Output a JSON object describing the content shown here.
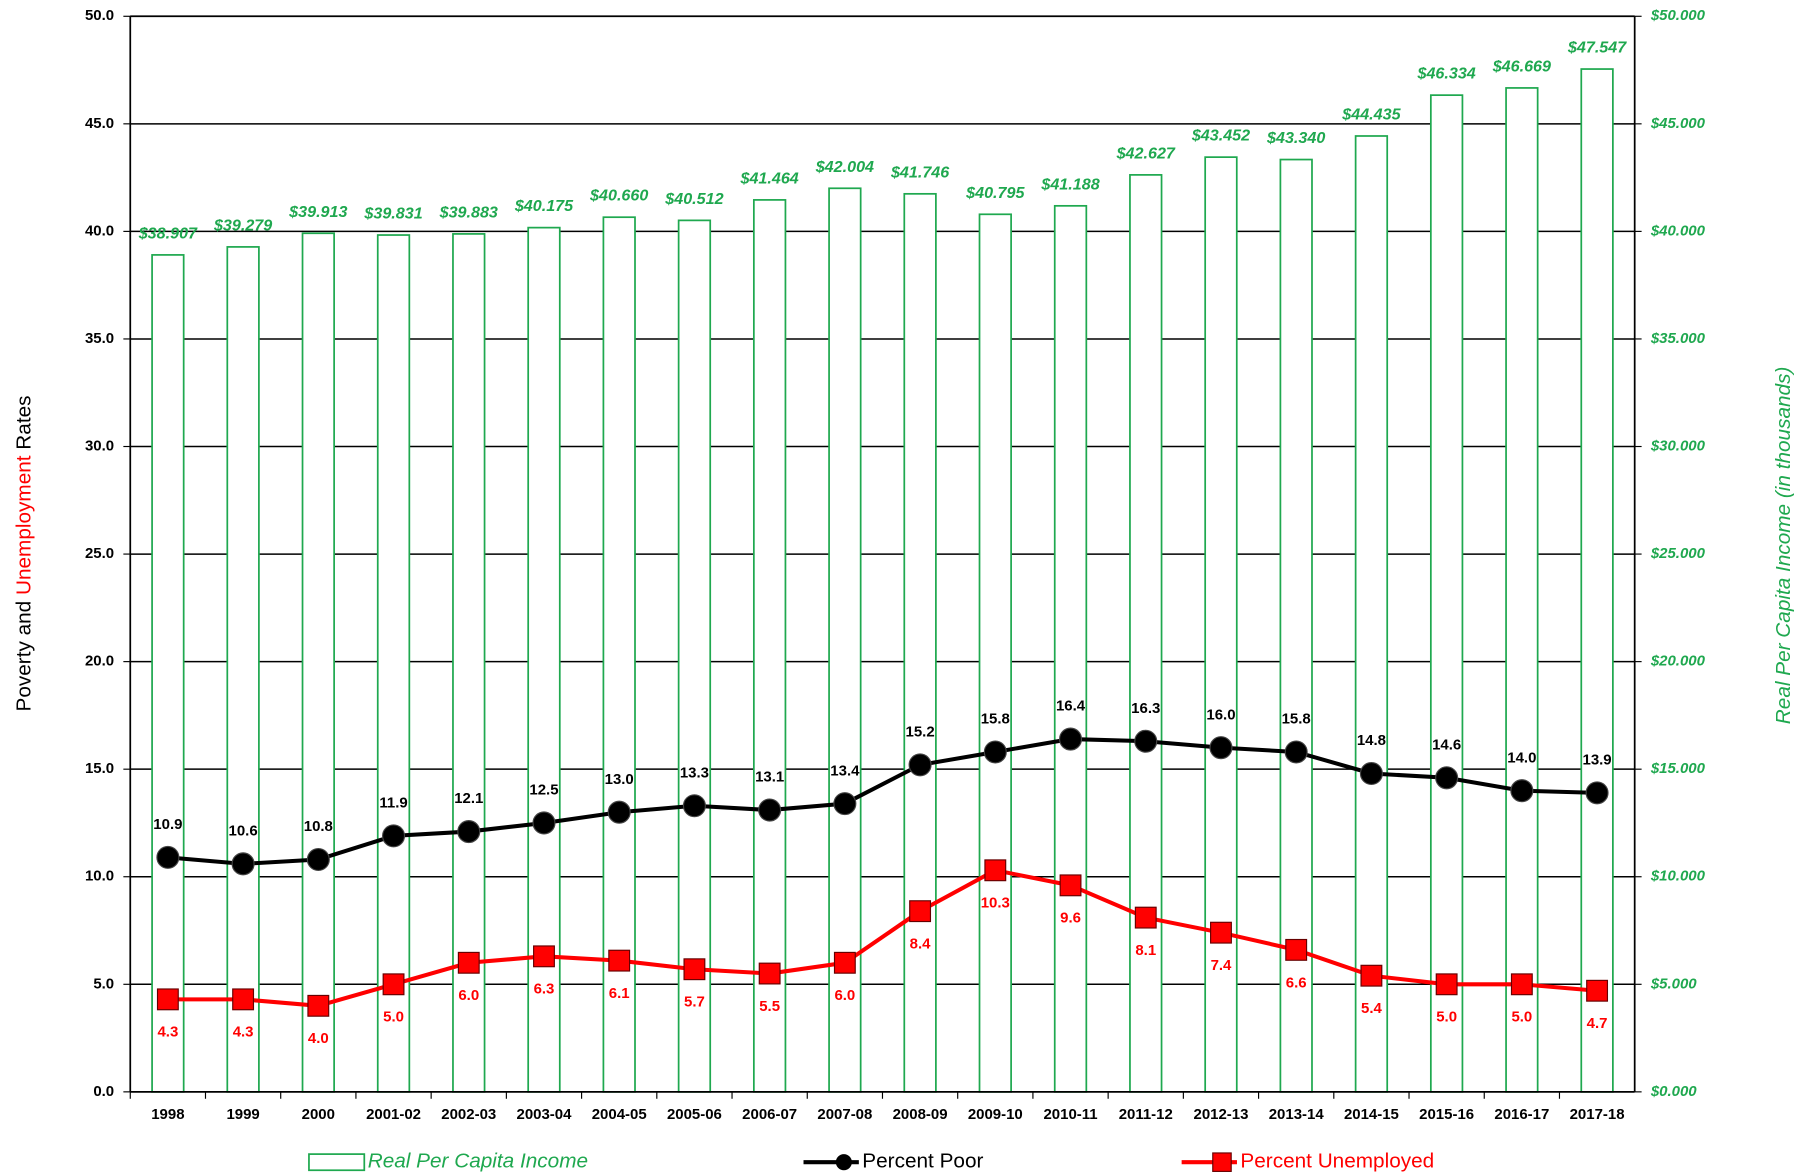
{
  "chart_data": {
    "type": "bar_line",
    "ylabel_parts": [
      "Poverty and",
      "Unemployment",
      "Rates"
    ],
    "y2label": "Real Per Capita Income (in thousands)",
    "categories": [
      "1998",
      "1999",
      "2000",
      "2001-02",
      "2002-03",
      "2003-04",
      "2004-05",
      "2005-06",
      "2006-07",
      "2007-08",
      "2008-09",
      "2009-10",
      "2010-11",
      "2011-12",
      "2012-13",
      "2013-14",
      "2014-15",
      "2015-16",
      "2016-17",
      "2017-18"
    ],
    "series": [
      {
        "name": "Real Per Capita Income",
        "type": "bar",
        "axis": "y2",
        "color": "#1fa84f",
        "values": [
          38.907,
          39.279,
          39.913,
          39.831,
          39.883,
          40.175,
          40.66,
          40.512,
          41.464,
          42.004,
          41.746,
          40.795,
          41.188,
          42.627,
          43.452,
          43.34,
          44.435,
          46.334,
          46.669,
          47.547
        ],
        "value_labels": [
          "$38.907",
          "$39.279",
          "$39.913",
          "$39.831",
          "$39.883",
          "$40.175",
          "$40.660",
          "$40.512",
          "$41.464",
          "$42.004",
          "$41.746",
          "$40.795",
          "$41.188",
          "$42.627",
          "$43.452",
          "$43.340",
          "$44.435",
          "$46.334",
          "$46.669",
          "$47.547"
        ]
      },
      {
        "name": "Percent Poor",
        "type": "line",
        "axis": "y",
        "color": "#000000",
        "values": [
          10.9,
          10.6,
          10.8,
          11.9,
          12.1,
          12.5,
          13.0,
          13.3,
          13.1,
          13.4,
          15.2,
          15.8,
          16.4,
          16.3,
          16.0,
          15.8,
          14.8,
          14.6,
          14.0,
          13.9
        ],
        "value_labels": [
          "10.9",
          "10.6",
          "10.8",
          "11.9",
          "12.1",
          "12.5",
          "13.0",
          "13.3",
          "13.1",
          "13.4",
          "15.2",
          "15.8",
          "16.4",
          "16.3",
          "16.0",
          "15.8",
          "14.8",
          "14.6",
          "14.0",
          "13.9"
        ]
      },
      {
        "name": "Percent Unemployed",
        "type": "line",
        "axis": "y",
        "color": "#ff0000",
        "values": [
          4.3,
          4.3,
          4.0,
          5.0,
          6.0,
          6.3,
          6.1,
          5.7,
          5.5,
          6.0,
          8.4,
          10.3,
          9.6,
          8.1,
          7.4,
          6.6,
          5.4,
          5.0,
          5.0,
          4.7
        ],
        "value_labels": [
          "4.3",
          "4.3",
          "4.0",
          "5.0",
          "6.0",
          "6.3",
          "6.1",
          "5.7",
          "5.5",
          "6.0",
          "8.4",
          "10.3",
          "9.6",
          "8.1",
          "7.4",
          "6.6",
          "5.4",
          "5.0",
          "5.0",
          "4.7"
        ]
      }
    ],
    "ylim": [
      0,
      50
    ],
    "yticks": [
      {
        "value": 0,
        "label": "0.0"
      },
      {
        "value": 5,
        "label": "5.0"
      },
      {
        "value": 10,
        "label": "10.0"
      },
      {
        "value": 15,
        "label": "15.0"
      },
      {
        "value": 20,
        "label": "20.0"
      },
      {
        "value": 25,
        "label": "25.0"
      },
      {
        "value": 30,
        "label": "30.0"
      },
      {
        "value": 35,
        "label": "35.0"
      },
      {
        "value": 40,
        "label": "40.0"
      },
      {
        "value": 45,
        "label": "45.0"
      },
      {
        "value": 50,
        "label": "50.0"
      }
    ],
    "y2lim": [
      0,
      50
    ],
    "y2ticks": [
      {
        "value": 0,
        "label": "$0.000"
      },
      {
        "value": 5,
        "label": "$5.000"
      },
      {
        "value": 10,
        "label": "$10.000"
      },
      {
        "value": 15,
        "label": "$15.000"
      },
      {
        "value": 20,
        "label": "$20.000"
      },
      {
        "value": 25,
        "label": "$25.000"
      },
      {
        "value": 30,
        "label": "$30.000"
      },
      {
        "value": 35,
        "label": "$35.000"
      },
      {
        "value": 40,
        "label": "$40.000"
      },
      {
        "value": 45,
        "label": "$45.000"
      },
      {
        "value": 50,
        "label": "$50.000"
      }
    ],
    "grid": true
  }
}
